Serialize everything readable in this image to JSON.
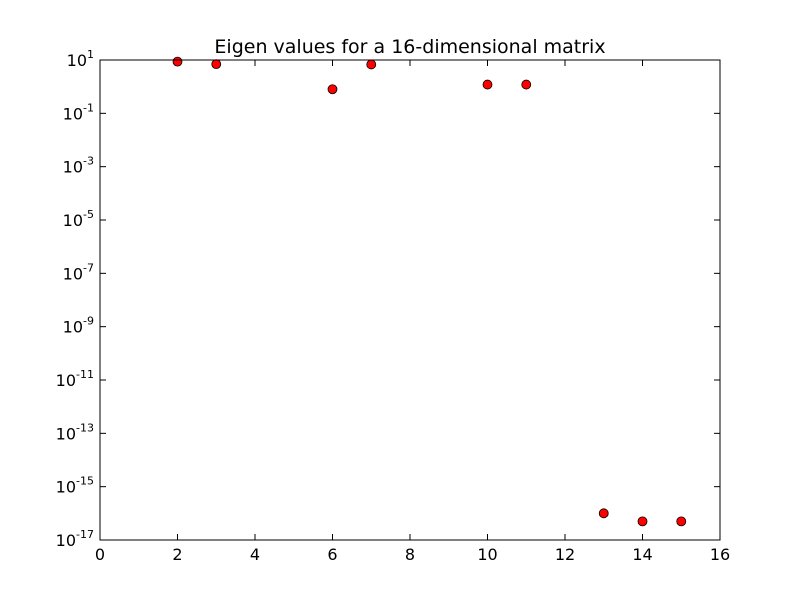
{
  "chart_data": {
    "type": "scatter",
    "title": "Eigen values for a 16-dimensional matrix",
    "xlabel": "",
    "ylabel": "",
    "y_scale": "log",
    "xlim": [
      0,
      16
    ],
    "ylim_exponents": [
      -17,
      1
    ],
    "x_ticks": [
      0,
      2,
      4,
      6,
      8,
      10,
      12,
      14,
      16
    ],
    "y_tick_exponents": [
      -17,
      -15,
      -13,
      -11,
      -9,
      -7,
      -5,
      -3,
      -1,
      1
    ],
    "y_tick_base": "10",
    "grid": false,
    "legend": "none",
    "marker_color": "#ff0000",
    "marker_edge_color": "#000000",
    "series": [
      {
        "x": [
          2,
          3,
          6,
          7,
          10,
          11,
          13,
          14,
          15
        ],
        "y": [
          8.7,
          7.0,
          0.8,
          6.8,
          1.2,
          1.2,
          1e-16,
          5e-17,
          5e-17
        ]
      }
    ]
  }
}
